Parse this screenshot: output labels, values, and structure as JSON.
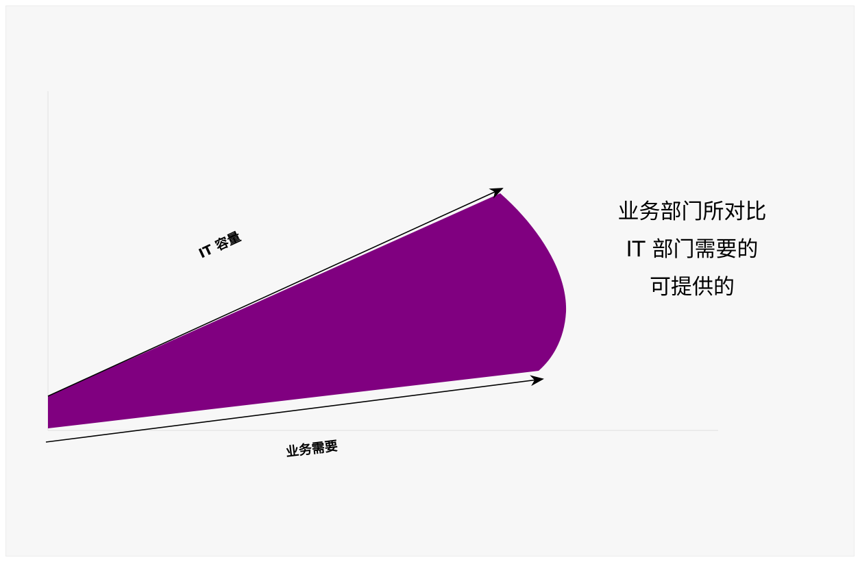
{
  "diagram": {
    "it_capacity_label": "IT 容量",
    "business_need_label": "业务需要",
    "description_lines": [
      "业务部门所对比",
      "IT 部门需要的",
      "可提供的"
    ],
    "colors": {
      "background": "#f7f7f7",
      "wedge_fill": "#800080",
      "arrow": "#000000",
      "text": "#000000",
      "axis": "#e4e4e4"
    },
    "icons": [
      "arrow-head-icon"
    ]
  }
}
